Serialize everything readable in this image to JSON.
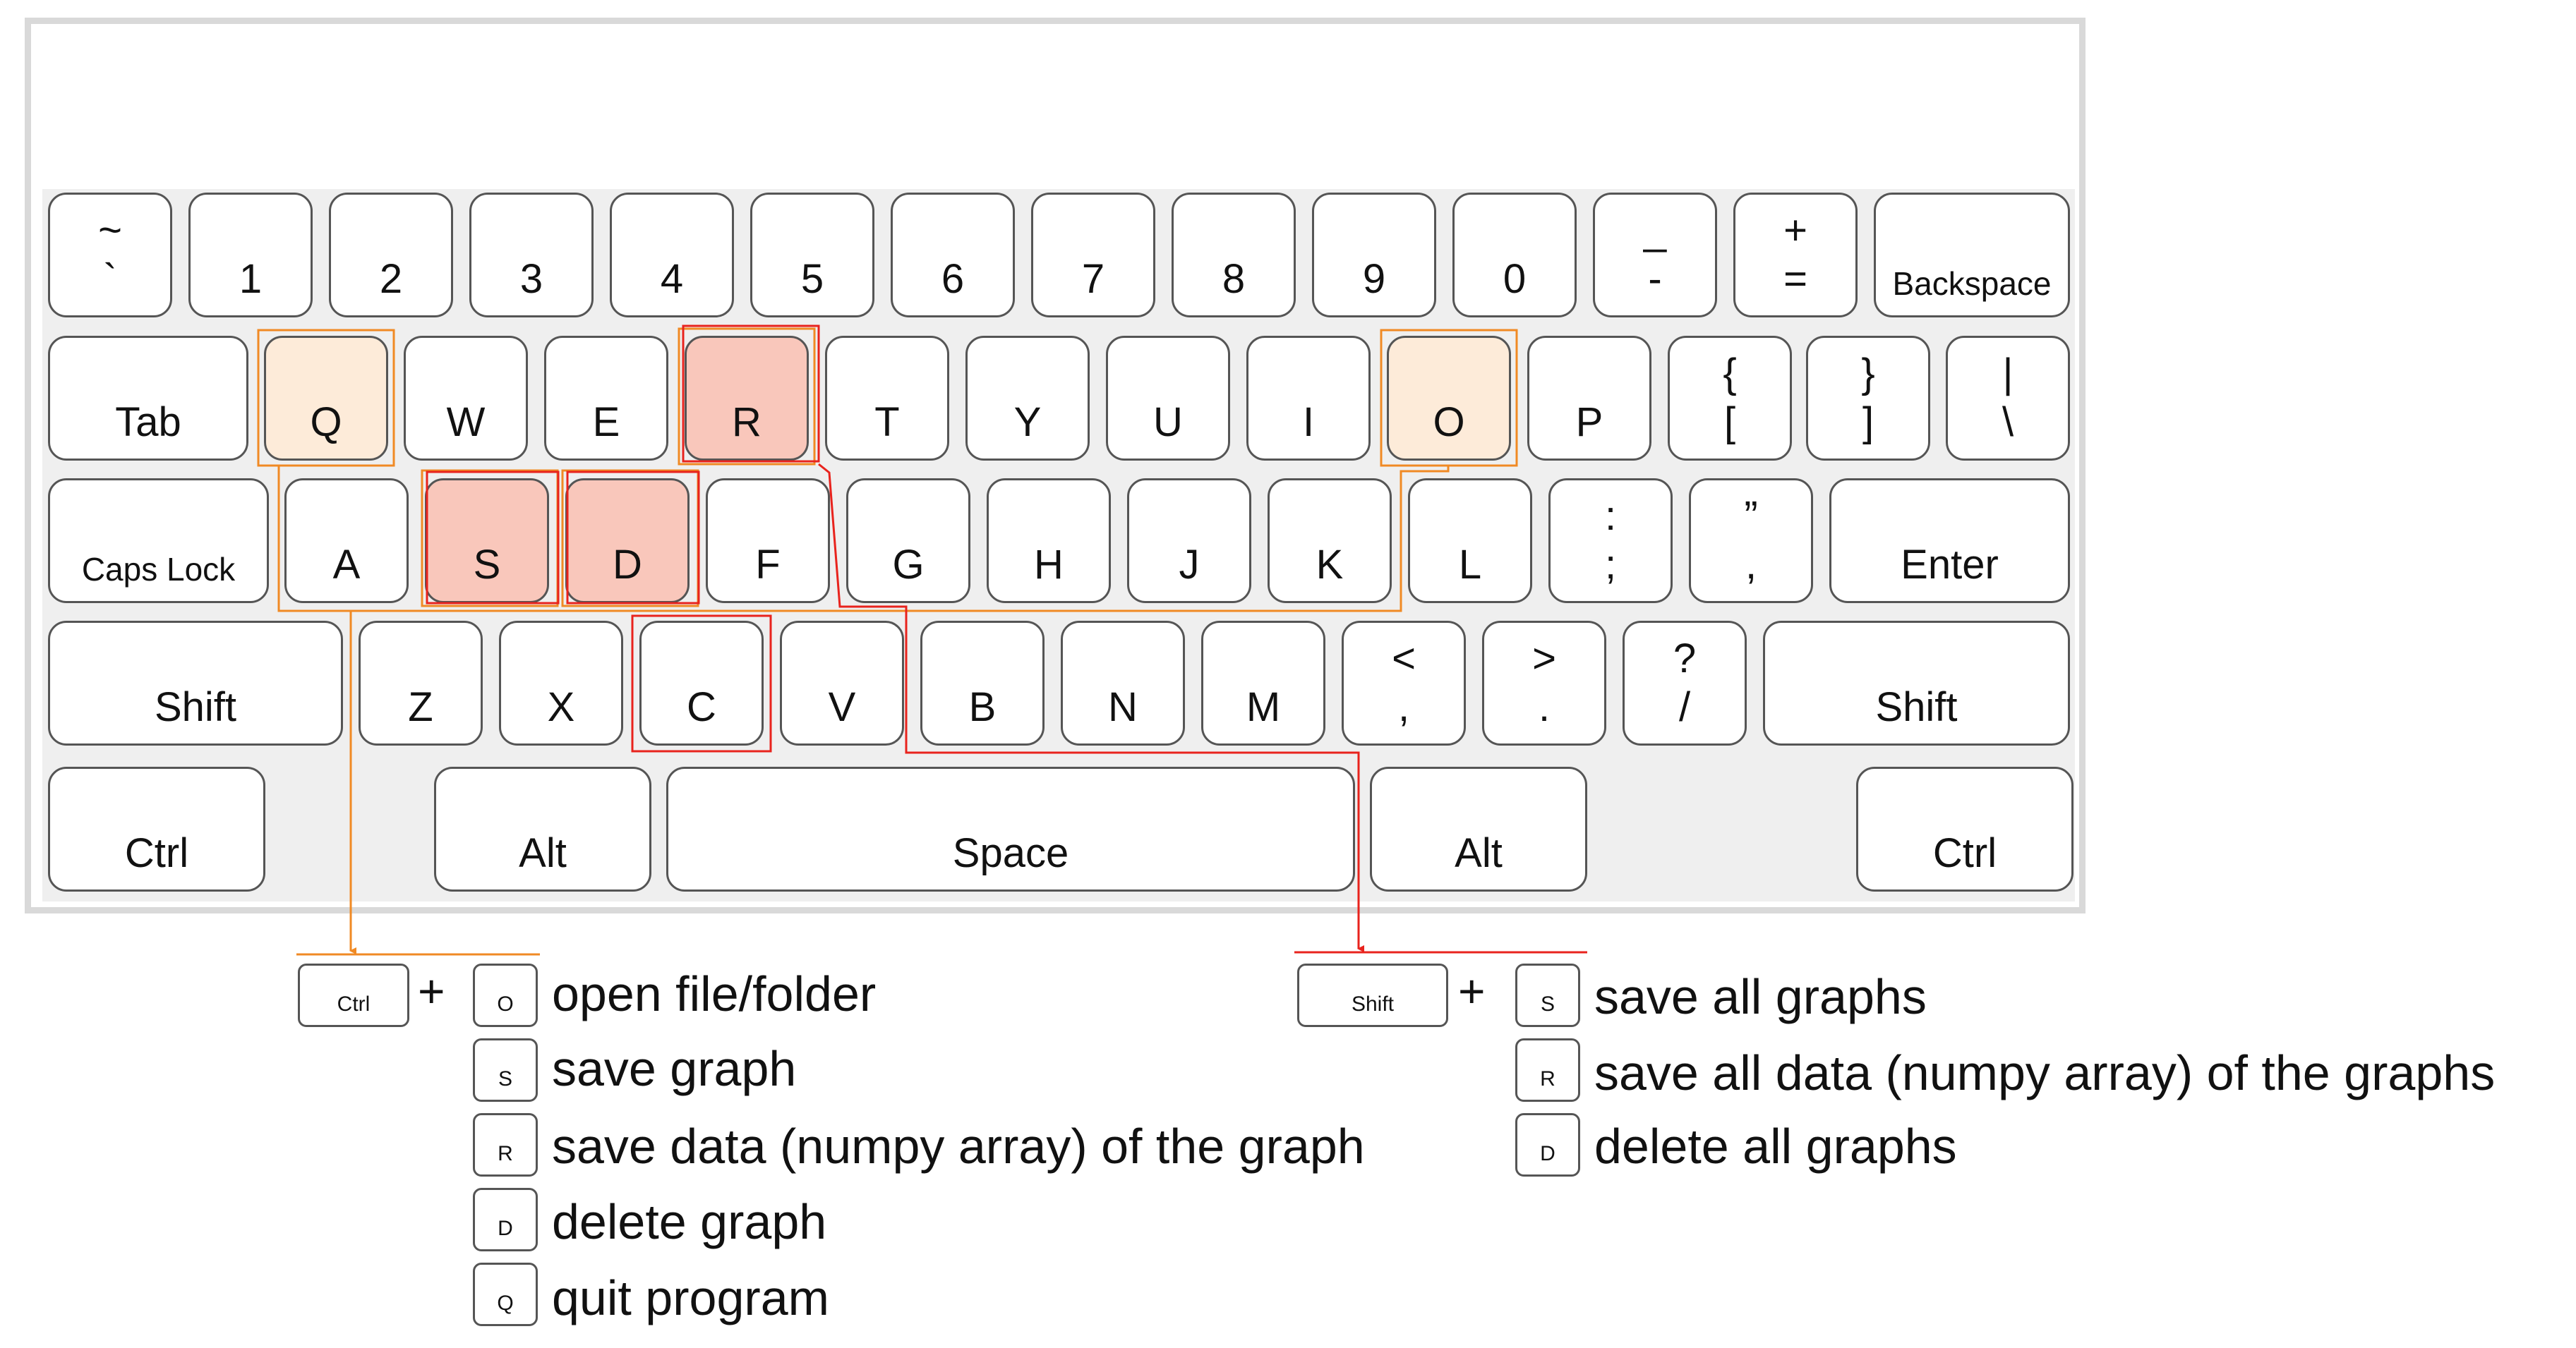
{
  "keyboard": {
    "row1": [
      {
        "top": "~",
        "bottom": "`"
      },
      {
        "label": "1"
      },
      {
        "label": "2"
      },
      {
        "label": "3"
      },
      {
        "label": "4"
      },
      {
        "label": "5"
      },
      {
        "label": "6"
      },
      {
        "label": "7"
      },
      {
        "label": "8"
      },
      {
        "label": "9"
      },
      {
        "label": "0"
      },
      {
        "top": "_",
        "bottom": "-"
      },
      {
        "top": "+",
        "bottom": "="
      },
      {
        "label": "Backspace"
      }
    ],
    "row2": [
      {
        "label": "Tab"
      },
      {
        "label": "Q"
      },
      {
        "label": "W"
      },
      {
        "label": "E"
      },
      {
        "label": "R"
      },
      {
        "label": "T"
      },
      {
        "label": "Y"
      },
      {
        "label": "U"
      },
      {
        "label": "I"
      },
      {
        "label": "O"
      },
      {
        "label": "P"
      },
      {
        "top": "{",
        "bottom": "["
      },
      {
        "top": "}",
        "bottom": "]"
      },
      {
        "top": "|",
        "bottom": "\\"
      }
    ],
    "row3": [
      {
        "label": "Caps Lock"
      },
      {
        "label": "A"
      },
      {
        "label": "S"
      },
      {
        "label": "D"
      },
      {
        "label": "F"
      },
      {
        "label": "G"
      },
      {
        "label": "H"
      },
      {
        "label": "J"
      },
      {
        "label": "K"
      },
      {
        "label": "L"
      },
      {
        "top": ":",
        "bottom": ";"
      },
      {
        "top": "”",
        "bottom": ","
      },
      {
        "label": "Enter"
      }
    ],
    "row4": [
      {
        "label": "Shift"
      },
      {
        "label": "Z"
      },
      {
        "label": "X"
      },
      {
        "label": "C"
      },
      {
        "label": "V"
      },
      {
        "label": "B"
      },
      {
        "label": "N"
      },
      {
        "label": "M"
      },
      {
        "top": "<",
        "bottom": ","
      },
      {
        "top": ">",
        "bottom": "."
      },
      {
        "top": "?",
        "bottom": "/"
      },
      {
        "label": "Shift"
      }
    ],
    "row5": [
      {
        "label": "Ctrl"
      },
      {
        "label": "Alt"
      },
      {
        "label": "Space"
      },
      {
        "label": "Alt"
      },
      {
        "label": "Ctrl"
      }
    ]
  },
  "colors": {
    "ctrl_group": "#f08a24",
    "shift_group": "#e8231d",
    "ctrl_key_fill": "#fdebd9",
    "shift_key_fill": "#f9c7bb"
  },
  "legend": {
    "plus": "+",
    "ctrl_group": {
      "modifier": "Ctrl",
      "items": [
        {
          "key": "O",
          "action": "open file/folder"
        },
        {
          "key": "S",
          "action": "save graph"
        },
        {
          "key": "R",
          "action": "save data (numpy array) of the graph"
        },
        {
          "key": "D",
          "action": "delete graph"
        },
        {
          "key": "Q",
          "action": "quit program"
        }
      ]
    },
    "shift_group": {
      "modifier": "Shift",
      "items": [
        {
          "key": "S",
          "action": "save all graphs"
        },
        {
          "key": "R",
          "action": "save all data (numpy array) of the graphs"
        },
        {
          "key": "D",
          "action": "delete all graphs"
        }
      ]
    }
  }
}
